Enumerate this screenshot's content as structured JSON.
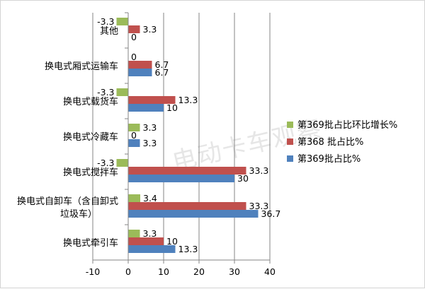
{
  "chart_data": {
    "type": "bar",
    "orientation": "horizontal",
    "categories": [
      [
        "其他"
      ],
      [
        "换电式厢式运输车"
      ],
      [
        "换电式载货车"
      ],
      [
        "换电式冷藏车"
      ],
      [
        "换电式搅拌车"
      ],
      [
        "换电式自卸车（含自卸式",
        "垃圾车）"
      ],
      [
        "换电式牵引车"
      ]
    ],
    "series": [
      {
        "name": "第369批占比环比增长%",
        "color": "#9bbb59",
        "values": [
          -3.3,
          0,
          -3.3,
          3.3,
          -3.3,
          3.4,
          3.3
        ],
        "labels": [
          "-3.3",
          "0",
          "-3.3",
          "3.3",
          "-3.3",
          "3.4",
          "3.3"
        ]
      },
      {
        "name": "第368 批占比%",
        "color": "#c0504d",
        "values": [
          3.3,
          6.7,
          13.3,
          0,
          33.3,
          33.3,
          10
        ],
        "labels": [
          "3.3",
          "6.7",
          "13.3",
          "0",
          "33.3",
          "33.3",
          "10"
        ]
      },
      {
        "name": "第369批占比%",
        "color": "#4f81bd",
        "values": [
          0,
          6.7,
          10,
          3.3,
          30,
          36.7,
          13.3
        ],
        "labels": [
          "0",
          "6.7",
          "10",
          "3.3",
          "30",
          "36.7",
          "13.3"
        ]
      }
    ],
    "xlim": [
      -10,
      40
    ],
    "xticks": [
      -10,
      0,
      10,
      20,
      30,
      40
    ],
    "xticklabels": [
      "-10",
      "0",
      "10",
      "20",
      "30",
      "40"
    ],
    "grid": "vertical",
    "legend_position": "right"
  },
  "watermark": "电动卡车观察"
}
